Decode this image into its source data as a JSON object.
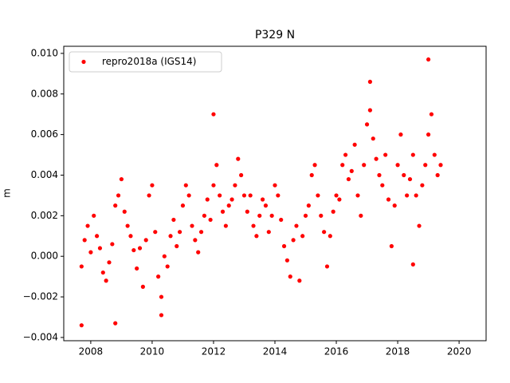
{
  "chart_data": {
    "type": "scatter",
    "title": "P329 N",
    "y_label": "m",
    "x": [
      2007.7,
      2007.8,
      2007.9,
      2008.0,
      2008.1,
      2008.2,
      2008.3,
      2008.4,
      2008.5,
      2008.6,
      2008.7,
      2008.8,
      2008.9,
      2009.0,
      2009.1,
      2009.2,
      2009.3,
      2009.4,
      2009.5,
      2009.6,
      2009.7,
      2009.8,
      2009.9,
      2010.0,
      2010.1,
      2010.2,
      2010.3,
      2010.4,
      2010.5,
      2010.6,
      2010.7,
      2010.8,
      2010.9,
      2011.0,
      2011.1,
      2011.2,
      2011.3,
      2011.4,
      2011.5,
      2011.6,
      2011.7,
      2011.8,
      2011.9,
      2012.0,
      2012.1,
      2012.2,
      2012.3,
      2012.4,
      2012.5,
      2012.6,
      2012.7,
      2012.8,
      2012.9,
      2013.0,
      2013.1,
      2013.2,
      2013.3,
      2013.4,
      2013.5,
      2013.6,
      2013.7,
      2013.8,
      2013.9,
      2014.0,
      2014.1,
      2014.2,
      2014.3,
      2014.4,
      2014.5,
      2014.6,
      2014.7,
      2014.8,
      2014.9,
      2015.0,
      2015.1,
      2015.2,
      2015.3,
      2015.4,
      2015.5,
      2015.6,
      2015.7,
      2015.8,
      2015.9,
      2016.0,
      2016.1,
      2016.2,
      2016.3,
      2016.4,
      2016.5,
      2016.6,
      2016.7,
      2016.8,
      2016.9,
      2017.0,
      2017.1,
      2017.2,
      2017.3,
      2017.4,
      2017.5,
      2017.6,
      2017.7,
      2017.8,
      2017.9,
      2018.0,
      2018.1,
      2018.2,
      2018.3,
      2018.4,
      2018.5,
      2018.6,
      2018.7,
      2018.8,
      2018.9,
      2019.0,
      2019.1,
      2019.2,
      2019.3,
      2019.4,
      2007.7,
      2008.8,
      2012.0,
      2017.1,
      2019.0,
      2018.5,
      2010.3
    ],
    "series": [
      {
        "name": "repro2018a (IGS14)",
        "color": "#ff0000",
        "values": [
          -0.0005,
          0.0008,
          0.0015,
          0.0002,
          0.002,
          0.001,
          0.0004,
          -0.0008,
          -0.0012,
          -0.0003,
          0.0006,
          0.0025,
          0.003,
          0.0038,
          0.0022,
          0.0015,
          0.001,
          0.0003,
          -0.0006,
          0.0004,
          -0.0015,
          0.0008,
          0.003,
          0.0035,
          0.0012,
          -0.001,
          -0.002,
          0.0,
          -0.0005,
          0.001,
          0.0018,
          0.0005,
          0.0012,
          0.0025,
          0.0035,
          0.003,
          0.0015,
          0.0008,
          0.0002,
          0.0012,
          0.002,
          0.0028,
          0.0018,
          0.0035,
          0.0045,
          0.003,
          0.0022,
          0.0015,
          0.0025,
          0.0028,
          0.0035,
          0.0048,
          0.004,
          0.003,
          0.0022,
          0.003,
          0.0015,
          0.001,
          0.002,
          0.0028,
          0.0025,
          0.0012,
          0.002,
          0.0035,
          0.003,
          0.0018,
          0.0005,
          -0.0002,
          -0.001,
          0.0008,
          0.0015,
          -0.0012,
          0.001,
          0.002,
          0.0025,
          0.004,
          0.0045,
          0.003,
          0.002,
          0.0012,
          -0.0005,
          0.001,
          0.0022,
          0.003,
          0.0028,
          0.0045,
          0.005,
          0.0038,
          0.0042,
          0.0055,
          0.003,
          0.002,
          0.0045,
          0.0065,
          0.0072,
          0.0058,
          0.0048,
          0.004,
          0.0035,
          0.005,
          0.0028,
          0.0005,
          0.0025,
          0.0045,
          0.006,
          0.004,
          0.003,
          0.0038,
          0.005,
          0.003,
          0.0015,
          0.0035,
          0.0045,
          0.006,
          0.007,
          0.005,
          0.004,
          0.0045,
          -0.0034,
          -0.0033,
          0.007,
          0.0086,
          0.0097,
          -0.0004,
          -0.0029
        ]
      }
    ],
    "xlim": [
      2007.12,
      2020.88
    ],
    "ylim": [
      -0.00416,
      0.01035
    ],
    "xticks": [
      2008,
      2010,
      2012,
      2014,
      2016,
      2018,
      2020
    ],
    "yticks": [
      {
        "value": -0.004,
        "label": "−0.004"
      },
      {
        "value": -0.002,
        "label": "−0.002"
      },
      {
        "value": 0,
        "label": "0.000"
      },
      {
        "value": 0.002,
        "label": "0.002"
      },
      {
        "value": 0.004,
        "label": "0.004"
      },
      {
        "value": 0.006,
        "label": "0.006"
      },
      {
        "value": 0.008,
        "label": "0.008"
      },
      {
        "value": 0.01,
        "label": "0.010"
      }
    ],
    "legend": "upper left"
  }
}
